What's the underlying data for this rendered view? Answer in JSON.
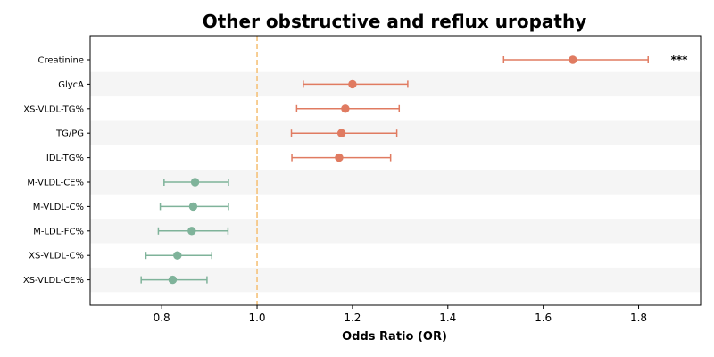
{
  "chart_data": {
    "type": "forest",
    "title": "Other obstructive and reflux uropathy",
    "xlabel": "Odds Ratio (OR)",
    "xlim": [
      0.65,
      1.93
    ],
    "xticks": [
      0.8,
      1.0,
      1.2,
      1.4,
      1.6,
      1.8
    ],
    "xtick_labels": [
      "0.8",
      "1.0",
      "1.2",
      "1.4",
      "1.6",
      "1.8"
    ],
    "reference_line": 1.0,
    "reference_color": "#f5c27a",
    "colors": {
      "above_one": "#e07b61",
      "below_one": "#7fb39a",
      "stripe": "#f5f5f5"
    },
    "rows": [
      {
        "label": "Creatinine",
        "or": 1.662,
        "lower": 1.517,
        "upper": 1.82,
        "significance": "***"
      },
      {
        "label": "GlycA",
        "or": 1.2,
        "lower": 1.097,
        "upper": 1.316,
        "significance": ""
      },
      {
        "label": "XS-VLDL-TG%",
        "or": 1.185,
        "lower": 1.083,
        "upper": 1.298,
        "significance": ""
      },
      {
        "label": "TG/PG",
        "or": 1.177,
        "lower": 1.072,
        "upper": 1.293,
        "significance": ""
      },
      {
        "label": "IDL-TG%",
        "or": 1.172,
        "lower": 1.073,
        "upper": 1.28,
        "significance": ""
      },
      {
        "label": "M-VLDL-CE%",
        "or": 0.87,
        "lower": 0.805,
        "upper": 0.94,
        "significance": ""
      },
      {
        "label": "M-VLDL-C%",
        "or": 0.866,
        "lower": 0.797,
        "upper": 0.94,
        "significance": ""
      },
      {
        "label": "M-LDL-FC%",
        "or": 0.863,
        "lower": 0.793,
        "upper": 0.939,
        "significance": ""
      },
      {
        "label": "XS-VLDL-C%",
        "or": 0.833,
        "lower": 0.767,
        "upper": 0.905,
        "significance": ""
      },
      {
        "label": "XS-VLDL-CE%",
        "or": 0.823,
        "lower": 0.757,
        "upper": 0.895,
        "significance": ""
      }
    ]
  }
}
